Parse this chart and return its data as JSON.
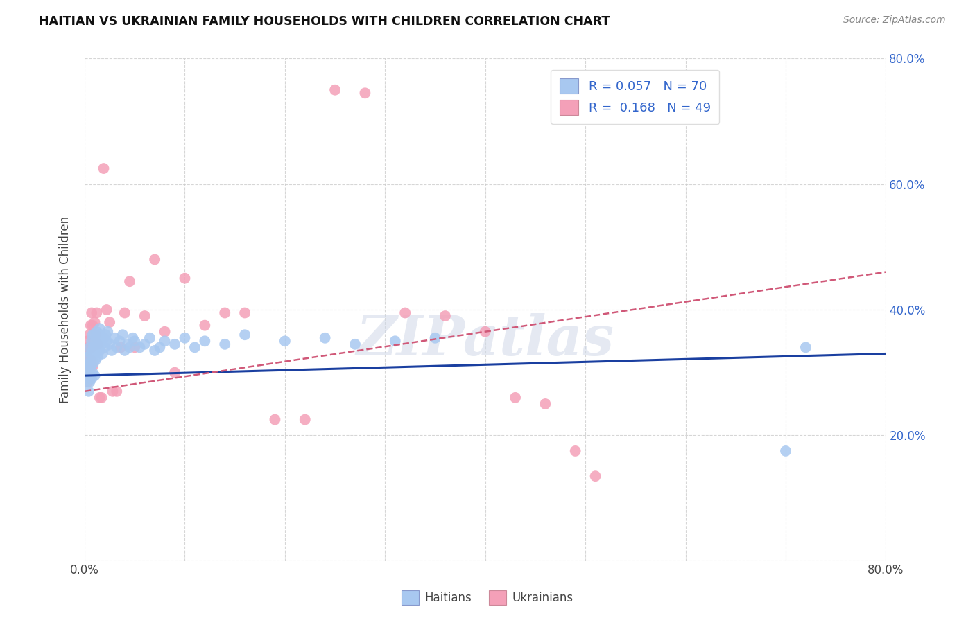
{
  "title": "HAITIAN VS UKRAINIAN FAMILY HOUSEHOLDS WITH CHILDREN CORRELATION CHART",
  "source": "Source: ZipAtlas.com",
  "ylabel": "Family Households with Children",
  "x_min": 0.0,
  "x_max": 0.8,
  "y_min": 0.0,
  "y_max": 0.8,
  "haitians_color": "#a8c8f0",
  "ukrainians_color": "#f4a0b8",
  "haitians_line_color": "#1a3fa0",
  "ukrainians_line_color": "#d05878",
  "R_haitians": 0.057,
  "N_haitians": 70,
  "R_ukrainians": 0.168,
  "N_ukrainians": 49,
  "legend_text_color": "#3366cc",
  "watermark": "ZIPatlas",
  "background_color": "#ffffff",
  "grid_color": "#cccccc",
  "haitians_x": [
    0.001,
    0.002,
    0.003,
    0.003,
    0.004,
    0.004,
    0.005,
    0.005,
    0.005,
    0.006,
    0.006,
    0.006,
    0.007,
    0.007,
    0.007,
    0.008,
    0.008,
    0.008,
    0.009,
    0.009,
    0.01,
    0.01,
    0.01,
    0.011,
    0.011,
    0.012,
    0.012,
    0.013,
    0.013,
    0.014,
    0.015,
    0.015,
    0.016,
    0.017,
    0.018,
    0.019,
    0.02,
    0.021,
    0.022,
    0.023,
    0.025,
    0.027,
    0.03,
    0.032,
    0.035,
    0.038,
    0.04,
    0.043,
    0.045,
    0.048,
    0.05,
    0.055,
    0.06,
    0.065,
    0.07,
    0.075,
    0.08,
    0.09,
    0.1,
    0.11,
    0.12,
    0.14,
    0.16,
    0.2,
    0.24,
    0.27,
    0.31,
    0.35,
    0.7,
    0.72
  ],
  "haitians_y": [
    0.285,
    0.31,
    0.295,
    0.325,
    0.3,
    0.27,
    0.315,
    0.34,
    0.285,
    0.33,
    0.295,
    0.31,
    0.35,
    0.32,
    0.29,
    0.335,
    0.36,
    0.3,
    0.34,
    0.315,
    0.36,
    0.33,
    0.295,
    0.35,
    0.32,
    0.365,
    0.34,
    0.355,
    0.325,
    0.345,
    0.37,
    0.335,
    0.36,
    0.345,
    0.33,
    0.355,
    0.34,
    0.36,
    0.35,
    0.365,
    0.345,
    0.335,
    0.355,
    0.34,
    0.35,
    0.36,
    0.335,
    0.345,
    0.34,
    0.355,
    0.35,
    0.34,
    0.345,
    0.355,
    0.335,
    0.34,
    0.35,
    0.345,
    0.355,
    0.34,
    0.35,
    0.345,
    0.36,
    0.35,
    0.355,
    0.345,
    0.35,
    0.355,
    0.175,
    0.34
  ],
  "ukrainians_x": [
    0.001,
    0.002,
    0.003,
    0.003,
    0.004,
    0.004,
    0.005,
    0.005,
    0.006,
    0.006,
    0.007,
    0.007,
    0.008,
    0.008,
    0.009,
    0.01,
    0.011,
    0.012,
    0.013,
    0.015,
    0.017,
    0.019,
    0.022,
    0.025,
    0.028,
    0.032,
    0.036,
    0.04,
    0.045,
    0.05,
    0.06,
    0.07,
    0.08,
    0.09,
    0.1,
    0.12,
    0.14,
    0.16,
    0.19,
    0.22,
    0.25,
    0.28,
    0.32,
    0.36,
    0.4,
    0.43,
    0.46,
    0.49,
    0.51
  ],
  "ukrainians_y": [
    0.3,
    0.33,
    0.35,
    0.285,
    0.34,
    0.31,
    0.36,
    0.29,
    0.375,
    0.32,
    0.395,
    0.34,
    0.375,
    0.31,
    0.35,
    0.38,
    0.36,
    0.395,
    0.345,
    0.26,
    0.26,
    0.625,
    0.4,
    0.38,
    0.27,
    0.27,
    0.34,
    0.395,
    0.445,
    0.34,
    0.39,
    0.48,
    0.365,
    0.3,
    0.45,
    0.375,
    0.395,
    0.395,
    0.225,
    0.225,
    0.75,
    0.745,
    0.395,
    0.39,
    0.365,
    0.26,
    0.25,
    0.175,
    0.135
  ]
}
